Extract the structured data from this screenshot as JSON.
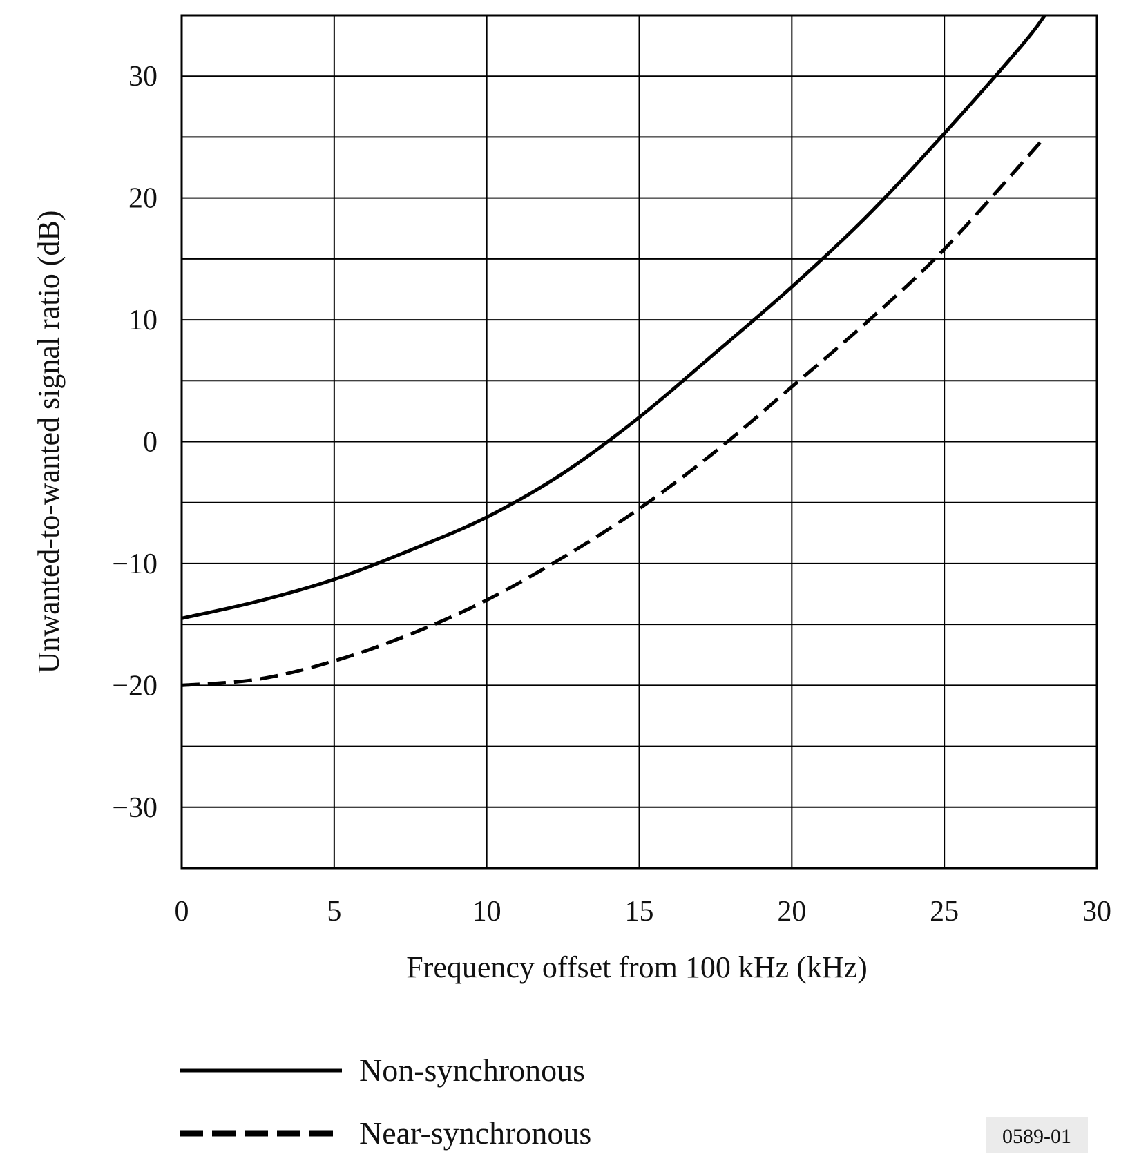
{
  "chart_data": {
    "type": "line",
    "title": "",
    "xlabel": "Frequency offset from 100 kHz (kHz)",
    "ylabel": "Unwanted-to-wanted signal ratio (dB)",
    "xlim": [
      0,
      30
    ],
    "ylim": [
      -35,
      35
    ],
    "grid": true,
    "x_ticks": [
      0,
      5,
      10,
      15,
      20,
      25,
      30
    ],
    "x_tick_labels": [
      "0",
      "5",
      "10",
      "15",
      "20",
      "25",
      "30"
    ],
    "y_ticks": [
      -30,
      -20,
      -10,
      0,
      10,
      20,
      30
    ],
    "y_tick_labels": [
      "−30",
      "−20",
      "−10",
      "0",
      "10",
      "20",
      "30"
    ],
    "legend_position": "bottom",
    "series": [
      {
        "name": "Non-synchronous",
        "line_style": "solid",
        "x": [
          0,
          2.5,
          5,
          7.5,
          10,
          12.5,
          15,
          17.5,
          20,
          22.5,
          25,
          27.5,
          28.3
        ],
        "y": [
          -14.5,
          -13.1,
          -11.3,
          -8.9,
          -6.2,
          -2.6,
          2,
          7.3,
          12.7,
          18.6,
          25.3,
          32.4,
          35
        ]
      },
      {
        "name": "Near-synchronous",
        "line_style": "dashed",
        "x": [
          0,
          2.5,
          5,
          7.5,
          10,
          12.5,
          15,
          17.5,
          20,
          22.5,
          25,
          28.3
        ],
        "y": [
          -20,
          -19.5,
          -18,
          -15.8,
          -13,
          -9.5,
          -5.5,
          -0.8,
          4.5,
          9.9,
          15.8,
          25
        ]
      }
    ],
    "figure_id": "0589-01"
  }
}
